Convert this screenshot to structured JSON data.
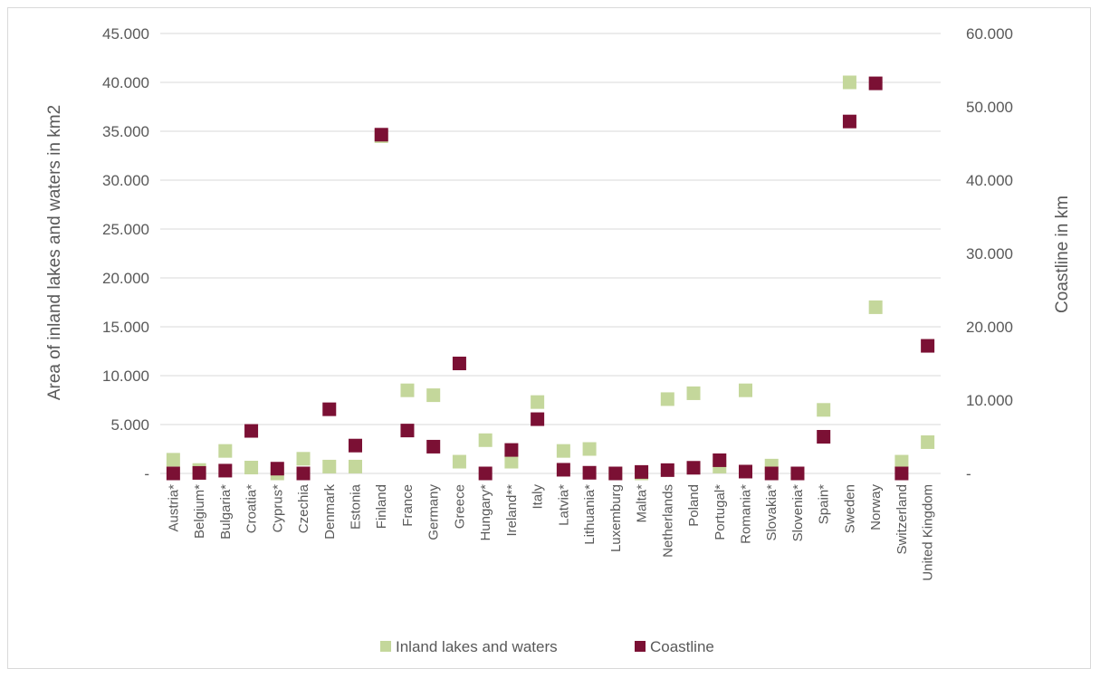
{
  "chart_data": {
    "type": "scatter",
    "categories": [
      "Austria*",
      "Belgium*",
      "Bulgaria*",
      "Croatia*",
      "Cyprus*",
      "Czechia",
      "Denmark",
      "Estonia",
      "Finland",
      "France",
      "Germany",
      "Greece",
      "Hungary*",
      "Ireland**",
      "Italy",
      "Latvia*",
      "Lithuania*",
      "Luxemburg",
      "Malta*",
      "Netherlands",
      "Poland",
      "Portugal*",
      "Romania*",
      "Slovakia*",
      "Slovenia*",
      "Spain*",
      "Sweden",
      "Norway",
      "Switzerland",
      "United Kingdom"
    ],
    "series": [
      {
        "name": "Inland lakes and waters",
        "axis": "left",
        "color": "#c4d79b",
        "values": [
          1400,
          350,
          2300,
          600,
          0,
          1500,
          700,
          700,
          34500,
          8500,
          8000,
          1200,
          3400,
          1200,
          7300,
          2300,
          2500,
          0,
          0,
          7600,
          8200,
          700,
          8500,
          800,
          0,
          6500,
          40000,
          17000,
          1200,
          3200
        ]
      },
      {
        "name": "Coastline",
        "axis": "right",
        "color": "#7b1034",
        "values": [
          0,
          70,
          380,
          5800,
          650,
          0,
          8750,
          3800,
          46200,
          5850,
          3650,
          15000,
          0,
          3200,
          7400,
          500,
          90,
          0,
          200,
          450,
          770,
          1800,
          250,
          0,
          0,
          5000,
          48000,
          53200,
          0,
          17400
        ]
      }
    ],
    "ylabel": "Area of inland lakes and waters in km2",
    "y2label": "Coastline in km",
    "ylim": [
      0,
      45000
    ],
    "y2lim": [
      0,
      60000
    ],
    "yticks": [
      0,
      5000,
      10000,
      15000,
      20000,
      25000,
      30000,
      35000,
      40000,
      45000
    ],
    "ytick_labels": [
      "-",
      "5.000",
      "10.000",
      "15.000",
      "20.000",
      "25.000",
      "30.000",
      "35.000",
      "40.000",
      "45.000"
    ],
    "y2ticks": [
      0,
      10000,
      20000,
      30000,
      40000,
      50000,
      60000
    ],
    "y2tick_labels": [
      "-",
      "10.000",
      "20.000",
      "30.000",
      "40.000",
      "50.000",
      "60.000"
    ],
    "grid": true,
    "legend": "bottom"
  }
}
